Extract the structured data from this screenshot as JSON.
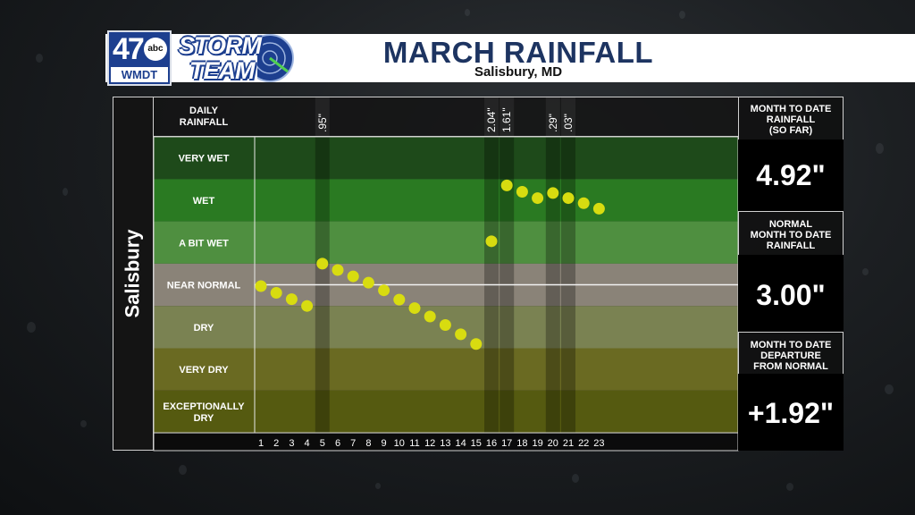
{
  "header": {
    "station_number": "47",
    "network": "abc",
    "call_sign": "WMDT",
    "brand_line1": "STORM",
    "brand_line2": "TEAM",
    "title": "MARCH RAINFALL",
    "subtitle": "Salisbury, MD"
  },
  "station_label": "Salisbury",
  "daily_rainfall_label": [
    "DAILY",
    "RAINFALL"
  ],
  "side_panel": {
    "mtd_label": [
      "MONTH TO DATE",
      "RAINFALL",
      "(SO FAR)"
    ],
    "mtd_value": "4.92\"",
    "normal_label": [
      "NORMAL",
      "MONTH TO DATE",
      "RAINFALL"
    ],
    "normal_value": "3.00\"",
    "departure_label": [
      "MONTH TO DATE",
      "DEPARTURE",
      "FROM NORMAL"
    ],
    "departure_value": "+1.92\""
  },
  "colors": {
    "dots": "#d8dc10",
    "bands": [
      "#1e4a1a",
      "#2a7a22",
      "#4f8f40",
      "#8a8378",
      "#7a8252",
      "#6a6a22",
      "#555a10"
    ]
  },
  "chart_data": {
    "type": "scatter",
    "title": "MARCH RAINFALL",
    "categories": [
      "VERY WET",
      "WET",
      "A BIT WET",
      "NEAR NORMAL",
      "DRY",
      "VERY DRY",
      "EXCEPTIONALLY DRY"
    ],
    "x": [
      1,
      2,
      3,
      4,
      5,
      6,
      7,
      8,
      9,
      10,
      11,
      12,
      13,
      14,
      15,
      16,
      17,
      18,
      19,
      20,
      21,
      22,
      23
    ],
    "y_level": [
      3.47,
      3.31,
      3.16,
      3.0,
      4.0,
      3.85,
      3.7,
      3.55,
      3.37,
      3.15,
      2.95,
      2.75,
      2.55,
      2.33,
      2.1,
      4.53,
      5.85,
      5.7,
      5.55,
      5.67,
      5.55,
      5.43,
      5.3
    ],
    "xlim": [
      1,
      23
    ],
    "rain_days": [
      {
        "day": 5,
        "amount": ".95\""
      },
      {
        "day": 16,
        "amount": "2.04\""
      },
      {
        "day": 17,
        "amount": "1.61\""
      },
      {
        "day": 20,
        "amount": ".29\""
      },
      {
        "day": 21,
        "amount": ".03\""
      }
    ],
    "x_tick_labels": [
      "1",
      "2",
      "3",
      "4",
      "5",
      "6",
      "7",
      "8",
      "9",
      "10",
      "11",
      "12",
      "13",
      "14",
      "15",
      "16",
      "17",
      "18",
      "19",
      "20",
      "21",
      "22",
      "23"
    ]
  }
}
